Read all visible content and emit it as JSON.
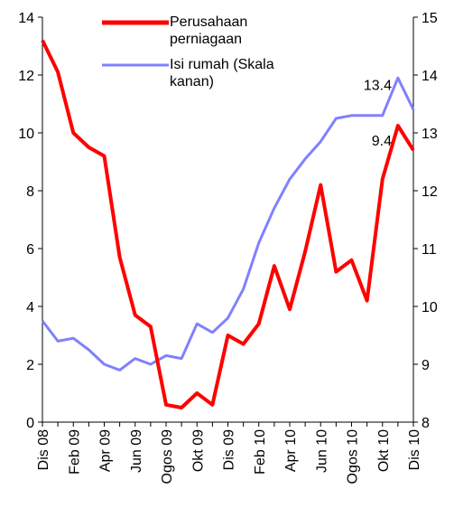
{
  "chart_data": {
    "type": "line",
    "categories": [
      "Dis 08",
      null,
      "Feb 09",
      null,
      "Apr 09",
      null,
      "Jun 09",
      null,
      "Ogos 09",
      null,
      "Okt 09",
      null,
      "Dis 09",
      null,
      "Feb 10",
      null,
      "Apr 10",
      null,
      "Jun 10",
      null,
      "Ogos 10",
      null,
      "Okt 10",
      null,
      "Dis 10"
    ],
    "series": [
      {
        "name": "Perusahaan perniagaan",
        "color": "#ff0000",
        "axis": "y",
        "values": [
          13.2,
          12.1,
          10.0,
          9.5,
          9.2,
          5.7,
          3.7,
          3.3,
          0.6,
          0.5,
          1.0,
          0.6,
          3.0,
          2.7,
          3.4,
          5.4,
          3.9,
          5.9,
          8.2,
          5.2,
          5.6,
          4.2,
          8.4,
          10.25,
          9.4
        ]
      },
      {
        "name": "Isi rumah (Skala kanan)",
        "color": "#8080ff",
        "axis": "y2",
        "values": [
          9.75,
          9.4,
          9.45,
          9.25,
          9.0,
          8.9,
          9.1,
          9.0,
          9.15,
          9.1,
          9.7,
          9.55,
          9.8,
          10.3,
          11.1,
          11.7,
          12.2,
          12.55,
          12.85,
          13.25,
          13.3,
          13.3,
          13.3,
          13.95,
          13.4
        ]
      }
    ],
    "ylim": [
      0,
      14
    ],
    "yticks": [
      0,
      2,
      4,
      6,
      8,
      10,
      12,
      14
    ],
    "y2lim": [
      8,
      15
    ],
    "y2ticks": [
      8,
      9,
      10,
      11,
      12,
      13,
      14,
      15
    ],
    "annotations": [
      {
        "text": "13.4",
        "color": "#0000cc",
        "series": 1,
        "index": 24
      },
      {
        "text": "9.4",
        "color": "#ff0000",
        "series": 0,
        "index": 24
      }
    ]
  }
}
